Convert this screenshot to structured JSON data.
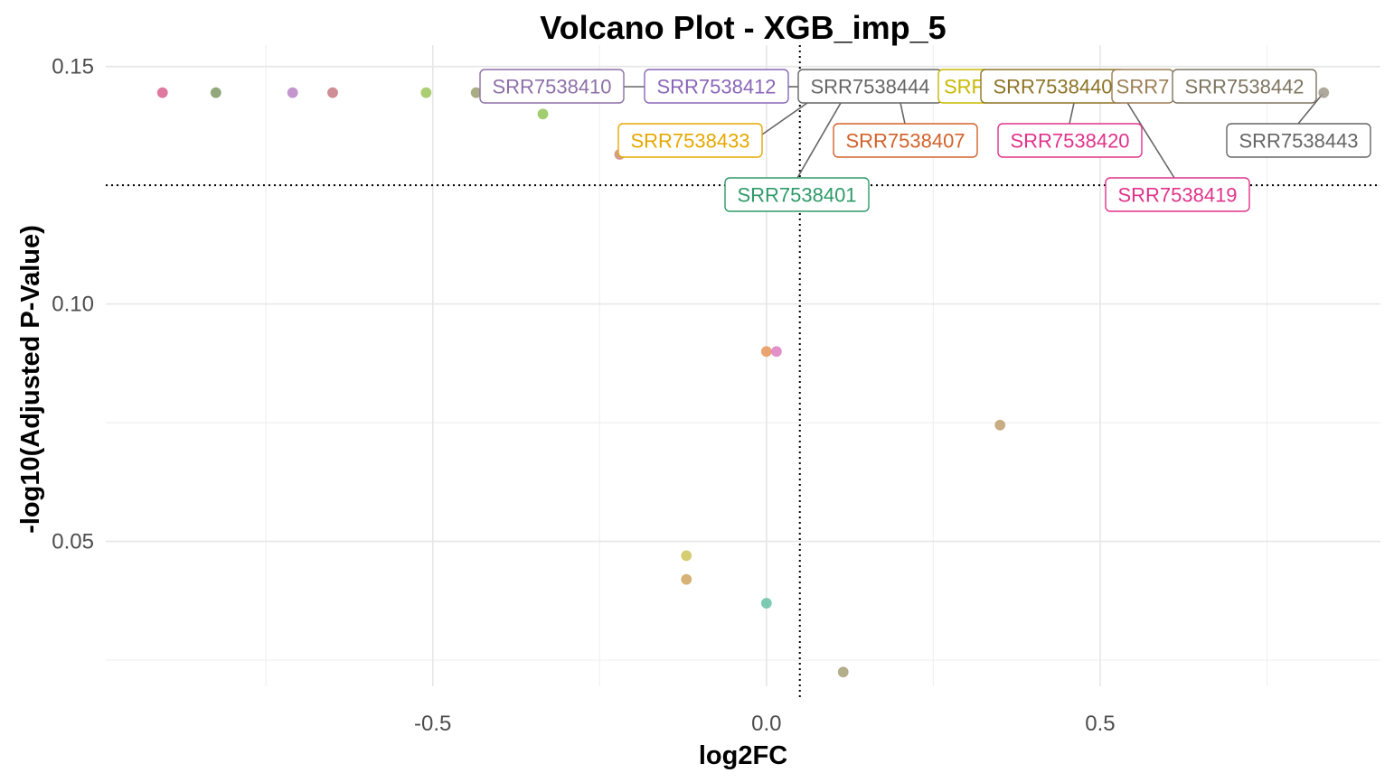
{
  "chart_data": {
    "type": "scatter",
    "title": "Volcano Plot - XGB_imp_5",
    "xlabel": "log2FC",
    "ylabel": "-log10(Adjusted P-Value)",
    "xlim": [
      -0.99,
      0.92
    ],
    "ylim": [
      0.0195,
      0.1545
    ],
    "x_ticks": [
      -0.5,
      0.0,
      0.5
    ],
    "x_tick_labels": [
      "-0.5",
      "0.0",
      "0.5"
    ],
    "y_ticks": [
      0.05,
      0.1,
      0.15
    ],
    "y_tick_labels": [
      "0.05",
      "0.10",
      "0.15"
    ],
    "grid": true,
    "vline": 0.05,
    "hline": 0.125,
    "points": [
      {
        "x": -0.905,
        "y": 0.1445,
        "color": "#d9628f"
      },
      {
        "x": -0.825,
        "y": 0.1445,
        "color": "#7e9a66"
      },
      {
        "x": -0.71,
        "y": 0.1445,
        "color": "#b884c4"
      },
      {
        "x": -0.65,
        "y": 0.1445,
        "color": "#c77a80"
      },
      {
        "x": -0.51,
        "y": 0.1445,
        "color": "#9cc55a"
      },
      {
        "x": -0.435,
        "y": 0.1445,
        "color": "#9a9d6e"
      },
      {
        "x": -0.335,
        "y": 0.14,
        "color": "#90c556"
      },
      {
        "x": -0.22,
        "y": 0.1315,
        "color": "#c98e7a"
      },
      {
        "x": 0.0,
        "y": 0.09,
        "color": "#e8955a"
      },
      {
        "x": 0.015,
        "y": 0.09,
        "color": "#dd7fc0"
      },
      {
        "x": 0.35,
        "y": 0.0745,
        "color": "#c0a070"
      },
      {
        "x": -0.12,
        "y": 0.047,
        "color": "#cfc45a"
      },
      {
        "x": -0.12,
        "y": 0.042,
        "color": "#cfa45e"
      },
      {
        "x": 0.0,
        "y": 0.037,
        "color": "#66c2a5"
      },
      {
        "x": 0.115,
        "y": 0.0225,
        "color": "#a8a078"
      },
      {
        "x": 0.835,
        "y": 0.1445,
        "color": "#a09a8a"
      }
    ],
    "labels": [
      {
        "text": "SRR7538410",
        "color": "#8d6fa6"
      },
      {
        "text": "SRR7538412",
        "color": "#8a66b8"
      },
      {
        "text": "SRR7538444",
        "color": "#666666"
      },
      {
        "text": "SRF",
        "color": "#c8b800"
      },
      {
        "text": "SRR7538440",
        "color": "#8c7425"
      },
      {
        "text": "SRR7",
        "color": "#9c7e55"
      },
      {
        "text": "SRR7538442",
        "color": "#7d7560"
      },
      {
        "text": "SRR7538433",
        "color": "#e6a800"
      },
      {
        "text": "SRR7538407",
        "color": "#d2622a"
      },
      {
        "text": "SRR7538420",
        "color": "#e0338a"
      },
      {
        "text": "SRR7538443",
        "color": "#666666"
      },
      {
        "text": "SRR7538401",
        "color": "#2e9a68"
      },
      {
        "text": "SRR7538419",
        "color": "#e0338a"
      }
    ]
  }
}
